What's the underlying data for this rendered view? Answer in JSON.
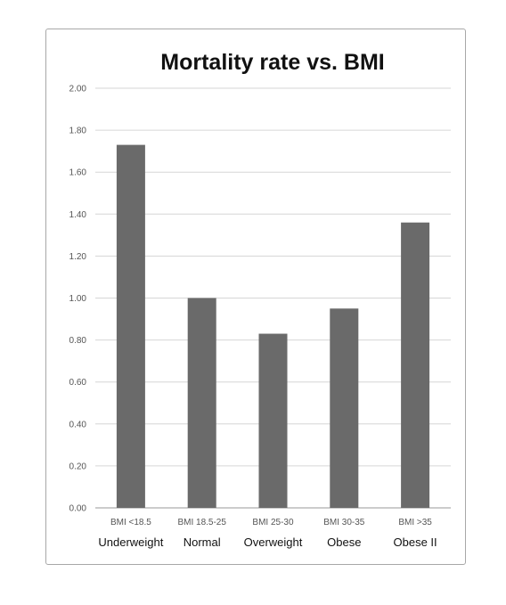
{
  "chart_data": {
    "type": "bar",
    "title": "Mortality rate vs. BMI",
    "xlabel": "",
    "ylabel": "",
    "ylim": [
      0,
      2
    ],
    "ytick_step": 0.2,
    "yticks": [
      "0.00",
      "0.20",
      "0.40",
      "0.60",
      "0.80",
      "1.00",
      "1.20",
      "1.40",
      "1.60",
      "1.80",
      "2.00"
    ],
    "grid": true,
    "legend": "none",
    "categories": [
      "BMI <18.5",
      "BMI 18.5-25",
      "BMI 25-30",
      "BMI 30-35",
      "BMI >35"
    ],
    "category_labels": [
      "Underweight",
      "Normal",
      "Overweight",
      "Obese",
      "Obese II"
    ],
    "values": [
      1.73,
      1.0,
      0.83,
      0.95,
      1.36
    ],
    "bar_color": "#6a6a6a"
  }
}
